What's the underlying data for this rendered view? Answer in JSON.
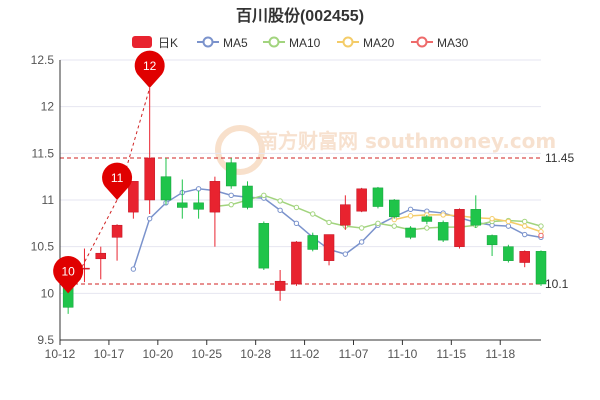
{
  "chart_data": {
    "type": "candlestick",
    "title": "百川股份(002455)",
    "legend": {
      "placement": "top",
      "entries": [
        {
          "name": "日K",
          "color": "#e8232f"
        },
        {
          "name": "MA5",
          "color": "#7b93cc"
        },
        {
          "name": "MA10",
          "color": "#a2d47e"
        },
        {
          "name": "MA20",
          "color": "#f4cc68"
        },
        {
          "name": "MA30",
          "color": "#ee6a6a"
        }
      ]
    },
    "ylim": [
      9.5,
      12.5
    ],
    "yticks": [
      "9.5",
      "10",
      "10.5",
      "11",
      "11.5",
      "12",
      "12.5"
    ],
    "xtick_labels": [
      "10-12",
      "10-17",
      "10-20",
      "10-25",
      "10-28",
      "11-02",
      "11-07",
      "11-10",
      "11-15",
      "11-18"
    ],
    "xtick_index": [
      0,
      3,
      6,
      9,
      12,
      15,
      18,
      21,
      24,
      27
    ],
    "grid": true,
    "colors": {
      "up": "#e8232f",
      "down": "#1fc44a",
      "markpoint": "#e00000",
      "refline": "#d02020",
      "axis": "#333333",
      "grid": "#e6e6f0"
    },
    "candles": [
      {
        "open": 10.25,
        "close": 9.85,
        "low": 9.78,
        "high": 10.27
      },
      {
        "open": 10.27,
        "close": 10.27,
        "low": 10.12,
        "high": 10.48
      },
      {
        "open": 10.37,
        "close": 10.43,
        "low": 10.15,
        "high": 10.5
      },
      {
        "open": 10.6,
        "close": 10.73,
        "low": 10.35,
        "high": 10.74
      },
      {
        "open": 10.87,
        "close": 11.2,
        "low": 10.8,
        "high": 11.2
      },
      {
        "open": 11.0,
        "close": 11.45,
        "low": 10.85,
        "high": 12.2
      },
      {
        "open": 11.25,
        "close": 11.0,
        "low": 10.95,
        "high": 11.45
      },
      {
        "open": 10.97,
        "close": 10.92,
        "low": 10.8,
        "high": 11.22
      },
      {
        "open": 10.97,
        "close": 10.9,
        "low": 10.8,
        "high": 11.1
      },
      {
        "open": 10.87,
        "close": 11.2,
        "low": 10.5,
        "high": 11.25
      },
      {
        "open": 11.4,
        "close": 11.15,
        "low": 11.12,
        "high": 11.45
      },
      {
        "open": 11.15,
        "close": 10.92,
        "low": 10.9,
        "high": 11.2
      },
      {
        "open": 10.75,
        "close": 10.27,
        "low": 10.25,
        "high": 10.77
      },
      {
        "open": 10.03,
        "close": 10.13,
        "low": 9.92,
        "high": 10.25
      },
      {
        "open": 10.1,
        "close": 10.55,
        "low": 10.08,
        "high": 10.56
      },
      {
        "open": 10.62,
        "close": 10.47,
        "low": 10.45,
        "high": 10.65
      },
      {
        "open": 10.35,
        "close": 10.63,
        "low": 10.3,
        "high": 10.63
      },
      {
        "open": 10.73,
        "close": 10.95,
        "low": 10.68,
        "high": 11.05
      },
      {
        "open": 10.88,
        "close": 11.12,
        "low": 10.87,
        "high": 11.13
      },
      {
        "open": 11.13,
        "close": 10.93,
        "low": 10.91,
        "high": 11.14
      },
      {
        "open": 11.0,
        "close": 10.82,
        "low": 10.8,
        "high": 11.01
      },
      {
        "open": 10.7,
        "close": 10.6,
        "low": 10.58,
        "high": 10.72
      },
      {
        "open": 10.82,
        "close": 10.77,
        "low": 10.74,
        "high": 10.84
      },
      {
        "open": 10.76,
        "close": 10.57,
        "low": 10.55,
        "high": 10.78
      },
      {
        "open": 10.5,
        "close": 10.9,
        "low": 10.48,
        "high": 10.91
      },
      {
        "open": 10.9,
        "close": 10.73,
        "low": 10.7,
        "high": 11.05
      },
      {
        "open": 10.62,
        "close": 10.52,
        "low": 10.4,
        "high": 10.63
      },
      {
        "open": 10.5,
        "close": 10.35,
        "low": 10.33,
        "high": 10.52
      },
      {
        "open": 10.33,
        "close": 10.45,
        "low": 10.28,
        "high": 10.46
      },
      {
        "open": 10.45,
        "close": 10.1,
        "low": 10.08,
        "high": 10.46
      }
    ],
    "series": [
      {
        "name": "MA5",
        "values": [
          null,
          null,
          null,
          null,
          10.26,
          10.8,
          10.97,
          11.08,
          11.12,
          11.1,
          11.05,
          11.03,
          11.02,
          10.89,
          10.75,
          10.6,
          10.47,
          10.42,
          10.55,
          10.73,
          10.82,
          10.9,
          10.88,
          10.86,
          10.81,
          10.76,
          10.73,
          10.72,
          10.63,
          10.6
        ]
      },
      {
        "name": "MA10",
        "values": [
          null,
          null,
          null,
          null,
          null,
          null,
          null,
          null,
          null,
          10.93,
          10.95,
          11.0,
          11.05,
          10.99,
          10.92,
          10.85,
          10.76,
          10.72,
          10.7,
          10.75,
          10.72,
          10.68,
          10.7,
          10.71,
          10.71,
          10.73,
          10.77,
          10.78,
          10.77,
          10.72
        ]
      },
      {
        "name": "MA20",
        "values": [
          null,
          null,
          null,
          null,
          null,
          null,
          null,
          null,
          null,
          null,
          null,
          null,
          null,
          null,
          null,
          null,
          null,
          null,
          null,
          null,
          10.79,
          10.83,
          10.84,
          10.84,
          10.83,
          10.81,
          10.8,
          10.77,
          10.72,
          10.66
        ]
      },
      {
        "name": "MA30",
        "values": [
          null,
          null,
          null,
          null,
          null,
          null,
          null,
          null,
          null,
          null,
          null,
          null,
          null,
          null,
          null,
          null,
          null,
          null,
          null,
          null,
          null,
          null,
          null,
          null,
          null,
          null,
          null,
          null,
          null,
          10.62
        ]
      }
    ],
    "markpoints": [
      {
        "label": "12",
        "index": 5,
        "value": 12.2
      },
      {
        "label": "11",
        "index": 3,
        "value": 11.0
      },
      {
        "label": "10",
        "index": 0,
        "value": 10.0
      }
    ],
    "reference_lines": [
      {
        "value": 11.45,
        "label": "11.45"
      },
      {
        "value": 10.1,
        "label": "10.1"
      }
    ],
    "watermark": "南方财富网 southmoney.com"
  }
}
